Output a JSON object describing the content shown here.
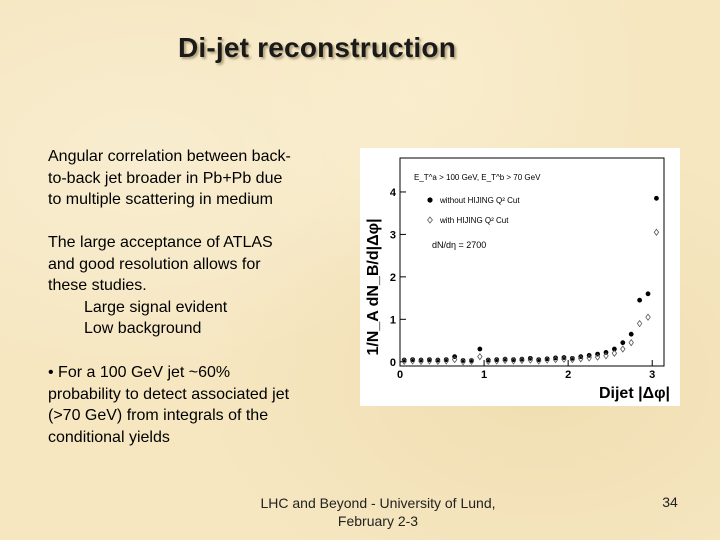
{
  "title": "Di-jet reconstruction",
  "paragraph1": [
    "Angular correlation between back-",
    "to-back jet broader in Pb+Pb due",
    "to multiple scattering in medium"
  ],
  "paragraph2": [
    "The large acceptance of ATLAS",
    "and good resolution allows for",
    "these studies."
  ],
  "sub_items": [
    "Large signal evident",
    "Low background"
  ],
  "paragraph3": [
    "• For a 100 GeV jet ~60%",
    "probability to detect associated jet",
    "(>70 GeV) from integrals of the",
    "conditional yields"
  ],
  "footer": [
    "LHC and Beyond - University of Lund,",
    "February 2-3"
  ],
  "page_number": "34",
  "chart_data": {
    "type": "scatter",
    "ylabel": "1/N_A dN_B/d|Δφ|",
    "xlabel": "Dijet |Δφ|",
    "xlim": [
      0,
      3.14
    ],
    "ylim": [
      -0.1,
      4.8
    ],
    "x_ticks": [
      "0",
      "1",
      "2",
      "3"
    ],
    "y_ticks": [
      "0",
      "1",
      "2",
      "3",
      "4"
    ],
    "cut_label": "E_T^a > 100 GeV, E_T^b > 70 GeV",
    "annotation": "dN/dη = 2700",
    "legend_position": "top-left",
    "series": [
      {
        "name": "without HIJING Q² Cut",
        "marker": "filled-circle",
        "x": [
          0.05,
          0.15,
          0.25,
          0.35,
          0.45,
          0.55,
          0.65,
          0.75,
          0.85,
          0.95,
          1.05,
          1.15,
          1.25,
          1.35,
          1.45,
          1.55,
          1.65,
          1.75,
          1.85,
          1.95,
          2.05,
          2.15,
          2.25,
          2.35,
          2.45,
          2.55,
          2.65,
          2.75,
          2.85,
          2.95,
          3.05
        ],
        "y": [
          0.04,
          0.05,
          0.04,
          0.05,
          0.04,
          0.05,
          0.12,
          0.03,
          0.03,
          0.3,
          0.04,
          0.05,
          0.06,
          0.05,
          0.06,
          0.08,
          0.05,
          0.07,
          0.09,
          0.1,
          0.08,
          0.12,
          0.15,
          0.18,
          0.22,
          0.3,
          0.45,
          0.65,
          1.45,
          1.6,
          3.85
        ]
      },
      {
        "name": "with HIJING Q² Cut",
        "marker": "open-diamond",
        "x": [
          0.05,
          0.15,
          0.25,
          0.35,
          0.45,
          0.55,
          0.65,
          0.75,
          0.85,
          0.95,
          1.05,
          1.15,
          1.25,
          1.35,
          1.45,
          1.55,
          1.65,
          1.75,
          1.85,
          1.95,
          2.05,
          2.15,
          2.25,
          2.35,
          2.45,
          2.55,
          2.65,
          2.75,
          2.85,
          2.95,
          3.05
        ],
        "y": [
          0.01,
          0.02,
          0.01,
          0.02,
          0.01,
          0.02,
          0.05,
          0.0,
          0.01,
          0.12,
          0.01,
          0.02,
          0.03,
          0.02,
          0.03,
          0.04,
          0.02,
          0.04,
          0.05,
          0.06,
          0.05,
          0.07,
          0.09,
          0.11,
          0.14,
          0.2,
          0.3,
          0.45,
          0.9,
          1.05,
          3.05
        ]
      }
    ]
  }
}
